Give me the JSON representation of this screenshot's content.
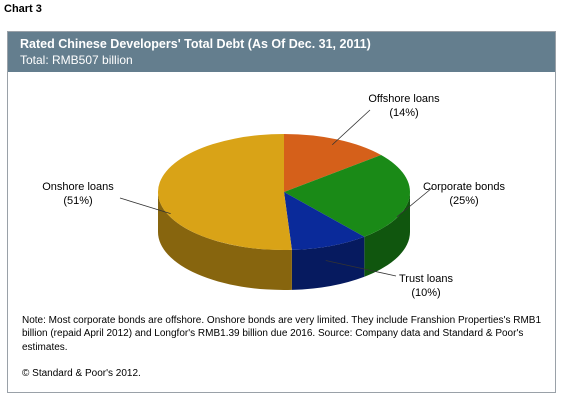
{
  "page_label": "Chart 3",
  "chart_data": {
    "type": "pie",
    "title": "Rated Chinese Developers' Total Debt (As Of Dec. 31, 2011)",
    "subtitle": "Total: RMB507 billion",
    "slices": [
      {
        "label": "Offshore loans",
        "pct_label": "(14%)",
        "value": 14,
        "color": "#d5601a"
      },
      {
        "label": "Corporate bonds",
        "pct_label": "(25%)",
        "value": 25,
        "color": "#1a8a17"
      },
      {
        "label": "Trust loans",
        "pct_label": "(10%)",
        "value": 10,
        "color": "#0a2a9a"
      },
      {
        "label": "Onshore loans",
        "pct_label": "(51%)",
        "value": 51,
        "color": "#d9a317"
      }
    ]
  },
  "note": "Note: Most corporate bonds are offshore. Onshore bonds are very limited. They include Franshion Properties's RMB1 billion (repaid April 2012) and Longfor's RMB1.39 billion due 2016. Source: Company data and Standard & Poor's estimates.",
  "copyright": "© Standard & Poor's 2012."
}
